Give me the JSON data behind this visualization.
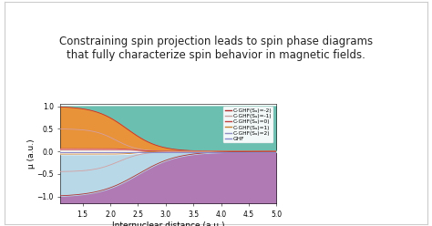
{
  "title": "Constraining spin projection leads to spin phase diagrams\nthat fully characterize spin behavior in magnetic fields.",
  "xlabel": "Internuclear distance (a.u.)",
  "ylabel": "μ (a.u.)",
  "xlim": [
    1.1,
    5.0
  ],
  "ylim": [
    -1.15,
    1.05
  ],
  "xticks": [
    1.5,
    2.0,
    2.5,
    3.0,
    3.5,
    4.0,
    4.5,
    5.0
  ],
  "yticks": [
    -1.0,
    -0.5,
    0.0,
    0.5,
    1.0
  ],
  "legend_labels": [
    "C-GHF(Sₐ)=-2)",
    "C-GHF(Sₐ)=-1)",
    "C-GHF(Sₐ)=0)",
    "C-GHF(Sₐ)=1)",
    "C-GHF(Sₐ)=2)",
    "GHF"
  ],
  "line_colors": [
    "#b03030",
    "#d4a0a0",
    "#d04040",
    "#c88030",
    "#c03030",
    "#8888cc"
  ],
  "fill_teal": "#6abfb0",
  "fill_orange": "#e8923a",
  "fill_lightblue": "#b8d8e8",
  "fill_purple": "#b07ab5",
  "fill_white": "#ffffff",
  "fill_teal_thin": "#7cc8a0",
  "title_fontsize": 8.5,
  "axis_fontsize": 6.5,
  "tick_fontsize": 5.5,
  "legend_fontsize": 4.2
}
